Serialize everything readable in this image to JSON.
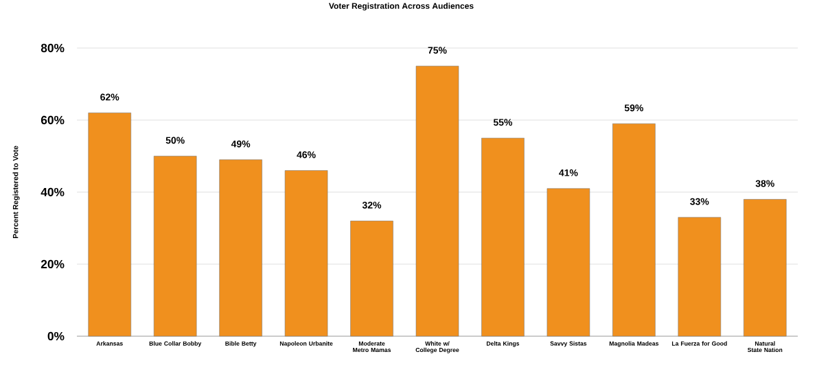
{
  "chart_data": {
    "type": "bar",
    "title": "Voter Registration Across Audiences",
    "ylabel": "Percent Registered to Vote",
    "categories": [
      "Arkansas",
      "Blue Collar Bobby",
      "Bible Betty",
      "Napoleon Urbanite",
      "Moderate Metro Mamas",
      "White w/ College Degree",
      "Delta Kings",
      "Savvy Sistas",
      "Magnolia Madeas",
      "La Fuerza for Good",
      "Natural State Nation"
    ],
    "values": [
      62,
      50,
      49,
      46,
      32,
      75,
      55,
      41,
      59,
      33,
      38
    ],
    "value_labels": [
      "62%",
      "50%",
      "49%",
      "46%",
      "32%",
      "75%",
      "55%",
      "41%",
      "59%",
      "33%",
      "38%"
    ],
    "color": "#f0901e",
    "ylim": [
      0,
      80
    ],
    "yticks": [
      {
        "value": 0,
        "label": "0%"
      },
      {
        "value": 20,
        "label": "20%"
      },
      {
        "value": 40,
        "label": "40%"
      },
      {
        "value": 60,
        "label": "60%"
      },
      {
        "value": 80,
        "label": "80%"
      }
    ],
    "grid": "y"
  }
}
